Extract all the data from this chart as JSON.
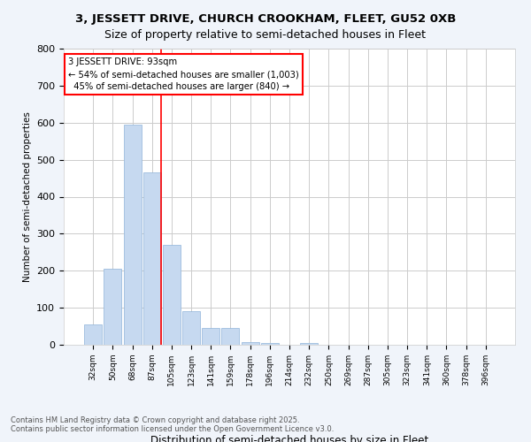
{
  "title_line1": "3, JESSETT DRIVE, CHURCH CROOKHAM, FLEET, GU52 0XB",
  "title_line2": "Size of property relative to semi-detached houses in Fleet",
  "xlabel": "Distribution of semi-detached houses by size in Fleet",
  "ylabel": "Number of semi-detached properties",
  "categories": [
    "32sqm",
    "50sqm",
    "68sqm",
    "87sqm",
    "105sqm",
    "123sqm",
    "141sqm",
    "159sqm",
    "178sqm",
    "196sqm",
    "214sqm",
    "232sqm",
    "250sqm",
    "269sqm",
    "287sqm",
    "305sqm",
    "323sqm",
    "341sqm",
    "360sqm",
    "378sqm",
    "396sqm"
  ],
  "values": [
    55,
    205,
    595,
    465,
    270,
    90,
    45,
    45,
    8,
    5,
    0,
    5,
    0,
    0,
    0,
    0,
    0,
    0,
    0,
    0,
    0
  ],
  "bar_color": "#c6d9f0",
  "bar_edge_color": "#8fb4d9",
  "red_line_index": 3,
  "annotation_text": "3 JESSETT DRIVE: 93sqm\n← 54% of semi-detached houses are smaller (1,003)\n  45% of semi-detached houses are larger (840) →",
  "ylim": [
    0,
    800
  ],
  "yticks": [
    0,
    100,
    200,
    300,
    400,
    500,
    600,
    700,
    800
  ],
  "footer": "Contains HM Land Registry data © Crown copyright and database right 2025.\nContains public sector information licensed under the Open Government Licence v3.0.",
  "background_color": "#f0f4fa",
  "plot_bg_color": "#ffffff",
  "grid_color": "#cccccc"
}
